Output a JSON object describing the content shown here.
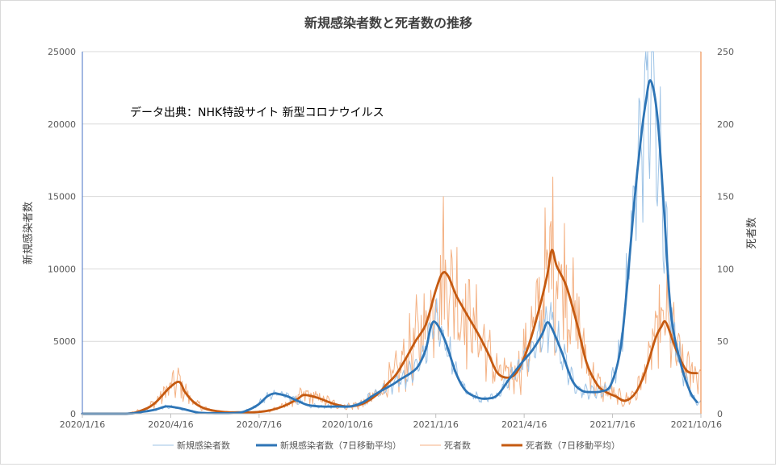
{
  "chart_data": {
    "type": "line",
    "title": "新規感染者数と死者数の推移",
    "annotation": "データ出典：NHK特設サイト 新型コロナウイルス",
    "y_left_label": "新規感染者数",
    "y_right_label": "死者数",
    "x_ticks": [
      "2020/1/16",
      "2020/4/16",
      "2020/7/16",
      "2020/10/16",
      "2021/1/16",
      "2021/4/16",
      "2021/7/16",
      "2021/10/16"
    ],
    "y_left_ticks": [
      "0",
      "5000",
      "10000",
      "15000",
      "20000",
      "25000"
    ],
    "y_right_ticks": [
      "0",
      "50",
      "100",
      "150",
      "200",
      "250"
    ],
    "y_left_range": [
      0,
      25000
    ],
    "y_right_range": [
      0,
      250
    ],
    "x_range": [
      "2020-01-16",
      "2021-10-16"
    ],
    "grid": true,
    "legend_position": "bottom",
    "legend": [
      "新規感染者数",
      "新規感染者数（7日移動平均）",
      "死者数",
      "死者数（7日移動平均）"
    ],
    "colors": {
      "cases_daily": "#9dc3e6",
      "cases_avg": "#2e75b6",
      "deaths_daily": "#f4b183",
      "deaths_avg": "#c55a11",
      "grid": "#d9d9d9"
    },
    "series": [
      {
        "name": "新規感染者数（7日移動平均）",
        "axis": "left",
        "x": [
          "2020-01-16",
          "2020-03-01",
          "2020-03-20",
          "2020-04-01",
          "2020-04-11",
          "2020-04-20",
          "2020-05-01",
          "2020-05-15",
          "2020-06-01",
          "2020-06-20",
          "2020-07-01",
          "2020-07-15",
          "2020-07-25",
          "2020-08-01",
          "2020-08-07",
          "2020-08-15",
          "2020-08-25",
          "2020-09-05",
          "2020-09-20",
          "2020-10-05",
          "2020-10-20",
          "2020-11-01",
          "2020-11-10",
          "2020-11-20",
          "2020-12-01",
          "2020-12-10",
          "2020-12-20",
          "2020-12-28",
          "2021-01-05",
          "2021-01-10",
          "2021-01-15",
          "2021-01-25",
          "2021-02-05",
          "2021-02-15",
          "2021-02-28",
          "2021-03-10",
          "2021-03-20",
          "2021-04-01",
          "2021-04-15",
          "2021-04-25",
          "2021-05-05",
          "2021-05-10",
          "2021-05-15",
          "2021-05-25",
          "2021-06-05",
          "2021-06-15",
          "2021-06-25",
          "2021-07-05",
          "2021-07-15",
          "2021-07-25",
          "2021-08-01",
          "2021-08-08",
          "2021-08-15",
          "2021-08-20",
          "2021-08-25",
          "2021-09-01",
          "2021-09-08",
          "2021-09-15",
          "2021-09-25",
          "2021-10-05",
          "2021-10-12"
        ],
        "values": [
          0,
          0,
          150,
          300,
          500,
          450,
          300,
          80,
          40,
          50,
          150,
          600,
          1200,
          1400,
          1350,
          1200,
          900,
          600,
          500,
          500,
          520,
          800,
          1200,
          1600,
          2000,
          2400,
          2800,
          3300,
          4500,
          6000,
          6300,
          5000,
          2800,
          1600,
          1100,
          1050,
          1300,
          2400,
          3600,
          4400,
          5500,
          6300,
          5900,
          4300,
          2300,
          1600,
          1500,
          1550,
          2000,
          4500,
          9000,
          14500,
          19000,
          21500,
          23000,
          20500,
          14000,
          7000,
          3500,
          1500,
          800
        ]
      },
      {
        "name": "死者数（7日移動平均）",
        "axis": "right",
        "x": [
          "2020-01-16",
          "2020-03-01",
          "2020-03-20",
          "2020-04-01",
          "2020-04-15",
          "2020-04-25",
          "2020-05-01",
          "2020-05-10",
          "2020-05-20",
          "2020-06-01",
          "2020-06-15",
          "2020-06-25",
          "2020-07-10",
          "2020-07-25",
          "2020-08-10",
          "2020-08-25",
          "2020-09-01",
          "2020-09-15",
          "2020-10-01",
          "2020-10-15",
          "2020-11-01",
          "2020-11-15",
          "2020-11-25",
          "2020-12-05",
          "2020-12-15",
          "2020-12-25",
          "2021-01-05",
          "2021-01-15",
          "2021-01-22",
          "2021-01-28",
          "2021-02-05",
          "2021-02-15",
          "2021-02-28",
          "2021-03-10",
          "2021-03-20",
          "2021-04-01",
          "2021-04-10",
          "2021-04-20",
          "2021-05-01",
          "2021-05-10",
          "2021-05-15",
          "2021-05-20",
          "2021-05-30",
          "2021-06-10",
          "2021-06-20",
          "2021-07-01",
          "2021-07-10",
          "2021-07-20",
          "2021-07-30",
          "2021-08-10",
          "2021-08-20",
          "2021-08-30",
          "2021-09-05",
          "2021-09-10",
          "2021-09-20",
          "2021-10-01",
          "2021-10-12"
        ],
        "values": [
          0,
          0,
          3,
          8,
          18,
          22,
          15,
          8,
          4,
          2,
          1,
          1,
          1,
          2,
          5,
          10,
          13,
          11,
          7,
          5,
          7,
          13,
          20,
          27,
          38,
          50,
          62,
          85,
          97,
          95,
          82,
          70,
          55,
          42,
          28,
          25,
          30,
          45,
          70,
          95,
          113,
          102,
          88,
          62,
          35,
          20,
          15,
          12,
          9,
          15,
          30,
          52,
          60,
          63,
          45,
          30,
          28
        ]
      }
    ]
  }
}
